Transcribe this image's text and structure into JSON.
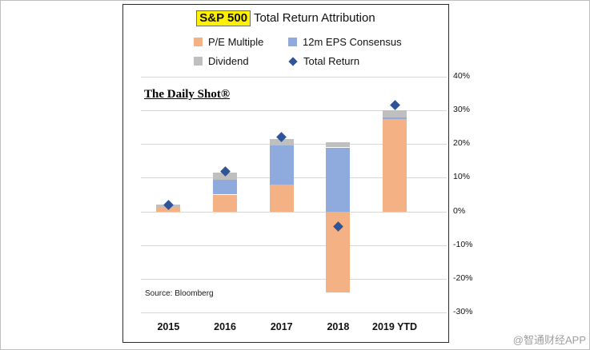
{
  "page": {
    "corner_watermark": "@智通财经APP"
  },
  "chart": {
    "title_highlight": "S&P 500",
    "title_rest": " Total Return Attribution",
    "brand_watermark": "The Daily Shot®",
    "source": "Source: Bloomberg",
    "colors": {
      "pe_multiple": "#F4B183",
      "eps_consensus": "#8FAADC",
      "dividend": "#BFBFBF",
      "total_return": "#2F5597",
      "title_highlight_bg": "#FFF100"
    },
    "legend": [
      {
        "label": "P/E Multiple",
        "shape": "square",
        "color": "#F4B183"
      },
      {
        "label": "12m EPS Consensus",
        "shape": "square",
        "color": "#8FAADC"
      },
      {
        "label": "Dividend",
        "shape": "square",
        "color": "#BFBFBF"
      },
      {
        "label": "Total Return",
        "shape": "diamond",
        "color": "#2F5597"
      }
    ]
  },
  "chart_data": {
    "type": "bar",
    "stacked": true,
    "title": "S&P 500 Total Return Attribution",
    "categories": [
      "2015",
      "2016",
      "2017",
      "2018",
      "2019 YTD"
    ],
    "series": [
      {
        "name": "P/E Multiple",
        "color": "#F4B183",
        "values": [
          1,
          5,
          8,
          -24,
          27.5
        ]
      },
      {
        "name": "12m EPS Consensus",
        "color": "#8FAADC",
        "values": [
          0,
          4.5,
          11.5,
          19,
          0.5
        ]
      },
      {
        "name": "Dividend",
        "color": "#BFBFBF",
        "values": [
          1,
          2,
          2,
          1.5,
          2
        ]
      }
    ],
    "markers": {
      "name": "Total Return",
      "color": "#2F5597",
      "values": [
        2,
        12,
        22,
        -4.4,
        31.5
      ]
    },
    "ylim": [
      -30,
      40
    ],
    "ytick_step": 10,
    "ytick_labels": [
      "40%",
      "30%",
      "20%",
      "10%",
      "0%",
      "-10%",
      "-20%",
      "-30%"
    ],
    "grid": true,
    "legend_position": "top-center",
    "source": "Source: Bloomberg"
  }
}
